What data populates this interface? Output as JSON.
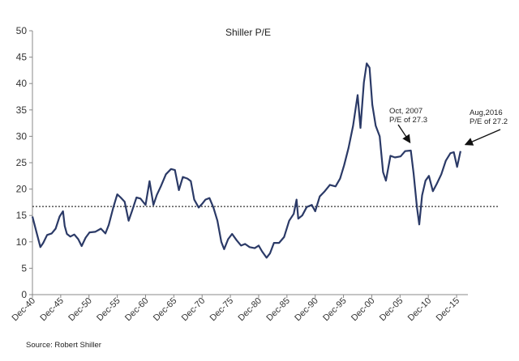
{
  "chart_data": {
    "type": "line",
    "title": "Shiller P/E",
    "xlabel": "",
    "ylabel": "",
    "ylim": [
      0,
      50
    ],
    "yticks": [
      0,
      5,
      10,
      15,
      20,
      25,
      30,
      35,
      40,
      45,
      50
    ],
    "xlim": [
      1940.9,
      2017.9
    ],
    "xticks": [
      {
        "label": "Dec-40",
        "year": 1940.9
      },
      {
        "label": "Dec-45",
        "year": 1945.9
      },
      {
        "label": "Dec-50",
        "year": 1950.9
      },
      {
        "label": "Dec-55",
        "year": 1955.9
      },
      {
        "label": "Dec-60",
        "year": 1960.9
      },
      {
        "label": "Dec-65",
        "year": 1965.9
      },
      {
        "label": "Dec-70",
        "year": 1970.9
      },
      {
        "label": "Dec-75",
        "year": 1975.9
      },
      {
        "label": "Dec-80",
        "year": 1980.9
      },
      {
        "label": "Dec-85",
        "year": 1985.9
      },
      {
        "label": "Dec-90",
        "year": 1990.9
      },
      {
        "label": "Dec-95",
        "year": 1995.9
      },
      {
        "label": "Dec-00",
        "year": 2000.9
      },
      {
        "label": "Dec-05",
        "year": 2005.9
      },
      {
        "label": "Dec-10",
        "year": 2010.9
      },
      {
        "label": "Dec-15",
        "year": 2015.9
      }
    ],
    "series": [
      {
        "name": "Shiller P/E",
        "color": "#2b3a67",
        "points": [
          [
            1940.9,
            14.8
          ],
          [
            1941.5,
            12.3
          ],
          [
            1942.3,
            9.0
          ],
          [
            1942.8,
            9.8
          ],
          [
            1943.5,
            11.3
          ],
          [
            1944.3,
            11.6
          ],
          [
            1945.0,
            12.5
          ],
          [
            1945.7,
            14.8
          ],
          [
            1946.3,
            15.8
          ],
          [
            1946.6,
            13.0
          ],
          [
            1947.0,
            11.5
          ],
          [
            1947.6,
            11.0
          ],
          [
            1948.3,
            11.4
          ],
          [
            1949.0,
            10.5
          ],
          [
            1949.6,
            9.2
          ],
          [
            1950.3,
            10.8
          ],
          [
            1951.0,
            11.8
          ],
          [
            1952.0,
            11.9
          ],
          [
            1953.0,
            12.5
          ],
          [
            1953.8,
            11.6
          ],
          [
            1954.4,
            13.2
          ],
          [
            1955.2,
            16.5
          ],
          [
            1955.9,
            19.0
          ],
          [
            1956.5,
            18.4
          ],
          [
            1957.2,
            17.6
          ],
          [
            1957.9,
            14.0
          ],
          [
            1958.5,
            15.8
          ],
          [
            1959.3,
            18.4
          ],
          [
            1960.0,
            18.2
          ],
          [
            1960.9,
            17.0
          ],
          [
            1961.6,
            21.5
          ],
          [
            1962.3,
            17.0
          ],
          [
            1962.9,
            18.9
          ],
          [
            1963.6,
            20.5
          ],
          [
            1964.5,
            22.8
          ],
          [
            1965.4,
            23.8
          ],
          [
            1966.1,
            23.6
          ],
          [
            1966.8,
            19.8
          ],
          [
            1967.5,
            22.3
          ],
          [
            1968.3,
            22.0
          ],
          [
            1968.9,
            21.5
          ],
          [
            1969.5,
            18.0
          ],
          [
            1970.3,
            16.5
          ],
          [
            1970.9,
            17.2
          ],
          [
            1971.5,
            18.0
          ],
          [
            1972.2,
            18.3
          ],
          [
            1972.9,
            16.5
          ],
          [
            1973.6,
            14.0
          ],
          [
            1974.3,
            10.0
          ],
          [
            1974.8,
            8.6
          ],
          [
            1975.5,
            10.5
          ],
          [
            1976.2,
            11.5
          ],
          [
            1977.0,
            10.3
          ],
          [
            1977.8,
            9.3
          ],
          [
            1978.5,
            9.6
          ],
          [
            1979.3,
            9.0
          ],
          [
            1980.2,
            8.8
          ],
          [
            1980.9,
            9.3
          ],
          [
            1981.5,
            8.2
          ],
          [
            1982.3,
            7.0
          ],
          [
            1982.9,
            7.8
          ],
          [
            1983.6,
            9.8
          ],
          [
            1984.5,
            9.8
          ],
          [
            1985.4,
            10.9
          ],
          [
            1986.3,
            14.0
          ],
          [
            1987.1,
            15.3
          ],
          [
            1987.6,
            18.0
          ],
          [
            1987.9,
            14.4
          ],
          [
            1988.6,
            15.0
          ],
          [
            1989.4,
            16.6
          ],
          [
            1990.3,
            17.0
          ],
          [
            1990.9,
            15.8
          ],
          [
            1991.7,
            18.6
          ],
          [
            1992.5,
            19.5
          ],
          [
            1993.5,
            20.8
          ],
          [
            1994.5,
            20.5
          ],
          [
            1995.3,
            22.0
          ],
          [
            1996.0,
            24.5
          ],
          [
            1996.8,
            27.8
          ],
          [
            1997.6,
            32.0
          ],
          [
            1998.4,
            37.8
          ],
          [
            1998.9,
            31.6
          ],
          [
            1999.5,
            40.2
          ],
          [
            2000.0,
            43.8
          ],
          [
            2000.5,
            43.0
          ],
          [
            2001.0,
            36.0
          ],
          [
            2001.6,
            32.0
          ],
          [
            2002.3,
            30.0
          ],
          [
            2002.9,
            23.2
          ],
          [
            2003.4,
            21.6
          ],
          [
            2004.2,
            26.3
          ],
          [
            2005.0,
            26.0
          ],
          [
            2006.0,
            26.2
          ],
          [
            2006.8,
            27.2
          ],
          [
            2007.8,
            27.3
          ],
          [
            2008.3,
            23.0
          ],
          [
            2008.9,
            16.5
          ],
          [
            2009.3,
            13.3
          ],
          [
            2009.8,
            18.8
          ],
          [
            2010.4,
            21.6
          ],
          [
            2011.0,
            22.5
          ],
          [
            2011.7,
            19.6
          ],
          [
            2012.4,
            21.0
          ],
          [
            2013.2,
            22.8
          ],
          [
            2014.0,
            25.4
          ],
          [
            2014.8,
            26.8
          ],
          [
            2015.4,
            27.0
          ],
          [
            2016.0,
            24.2
          ],
          [
            2016.6,
            27.2
          ]
        ]
      }
    ],
    "reference_line": {
      "value": 16.7,
      "style": "dotted"
    },
    "annotations": [
      {
        "lines": [
          "Oct, 2007",
          "P/E of 27.3"
        ],
        "target_year": 2007.8,
        "target_value": 27.3
      },
      {
        "lines": [
          "Aug,2016",
          "P/E of 27.2"
        ],
        "target_year": 2016.6,
        "target_value": 27.2
      }
    ],
    "source": "Source:  Robert Shiller"
  }
}
